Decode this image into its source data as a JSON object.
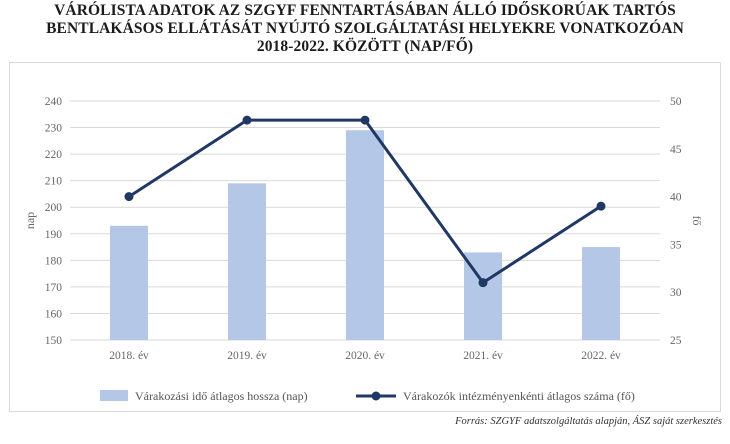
{
  "title": {
    "line1": "VÁRÓLISTA ADATOK AZ SZGYF FENNTARTÁSÁBAN ÁLLÓ IDŐSKORÚAK TARTÓS",
    "line2": "BENTLAKÁSOS ELLÁTÁSÁT NYÚJTÓ SZOLGÁLTATÁSI HELYEKRE VONATKOZÓAN",
    "line3": "2018-2022. KÖZÖTT (NAP/FŐ)"
  },
  "source": "Forrás: SZGYF adatszolgáltatás alapján, ÁSZ saját szerkesztés",
  "colors": {
    "bar": "#b4c7e7",
    "line": "#203864",
    "grid": "#d9d9d9"
  },
  "chart_data": {
    "type": "bar+line",
    "categories": [
      "2018. év",
      "2019. év",
      "2020. év",
      "2021. év",
      "2022. év"
    ],
    "series": [
      {
        "name": "Várakozási idő átlagos hossza (nap)",
        "type": "bar",
        "axis": "left",
        "values": [
          193,
          209,
          229,
          183,
          185
        ]
      },
      {
        "name": "Várakozók intézményenkénti átlagos száma (fő)",
        "type": "line",
        "axis": "right",
        "values": [
          40,
          48,
          48,
          31,
          39
        ]
      }
    ],
    "ylabel_left": "nap",
    "ylabel_right": "fő",
    "ylim_left": [
      150,
      240
    ],
    "yticks_left": [
      150,
      160,
      170,
      180,
      190,
      200,
      210,
      220,
      230,
      240
    ],
    "ylim_right": [
      25,
      50
    ],
    "yticks_right": [
      25,
      30,
      35,
      40,
      45,
      50
    ],
    "grid": true,
    "legend": "bottom"
  }
}
